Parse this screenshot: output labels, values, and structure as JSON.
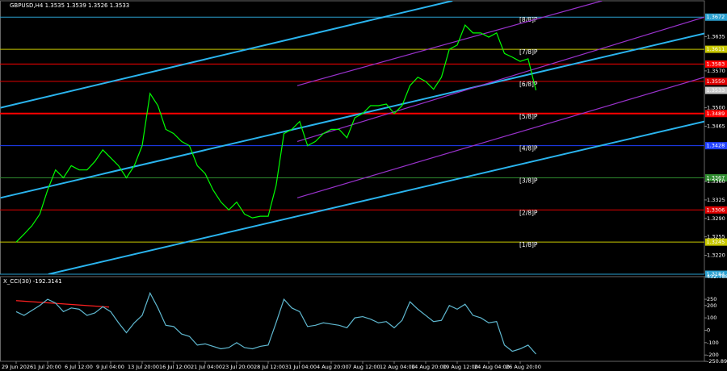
{
  "chart_data": [
    {
      "type": "line",
      "title": "GBPUSD,H4  1.3535 1.3539 1.3526 1.3533",
      "categories": [
        "29 Jun 2026",
        null,
        null,
        null,
        "1 Jul 20:00",
        null,
        null,
        null,
        "6 Jul 12:00",
        null,
        null,
        null,
        "9 Jul 04:00",
        null,
        null,
        null,
        "13 Jul 20:00",
        null,
        null,
        null,
        "16 Jul 12:00",
        null,
        null,
        null,
        "21 Jul 04:00",
        null,
        null,
        null,
        "23 Jul 20:00",
        null,
        null,
        null,
        "28 Jul 12:00",
        null,
        null,
        null,
        "31 Jul 04:00",
        null,
        null,
        null,
        "4 Aug 20:00",
        null,
        null,
        null,
        "7 Aug 12:00",
        null,
        null,
        null,
        "12 Aug 04:00",
        null,
        null,
        null,
        "14 Aug 20:00",
        null,
        null,
        null,
        "19 Aug 12:00",
        null,
        null,
        null,
        "24 Aug 04:00",
        null,
        null,
        null,
        "26 Aug 20:00",
        null,
        null
      ],
      "values": [
        1.3245,
        1.326,
        1.3276,
        1.3298,
        1.3344,
        1.3382,
        1.3367,
        1.339,
        1.3382,
        1.3382,
        1.3398,
        1.342,
        1.3405,
        1.339,
        1.3367,
        1.339,
        1.3428,
        1.3527,
        1.3504,
        1.3459,
        1.3451,
        1.3436,
        1.3428,
        1.339,
        1.3375,
        1.3344,
        1.3321,
        1.3306,
        1.3321,
        1.3298,
        1.3291,
        1.3294,
        1.3294,
        1.3352,
        1.3451,
        1.3459,
        1.3474,
        1.3428,
        1.3436,
        1.3451,
        1.3459,
        1.3459,
        1.3443,
        1.3481,
        1.3489,
        1.3504,
        1.3504,
        1.3507,
        1.3489,
        1.3504,
        1.3542,
        1.3558,
        1.355,
        1.3535,
        1.3558,
        1.3611,
        1.3619,
        1.3657,
        1.3642,
        1.3642,
        1.3634,
        1.3642,
        1.3603,
        1.3596,
        1.3588,
        1.3593,
        1.3533
      ],
      "color": "#00ff00",
      "ylim": [
        1.3184,
        1.3703
      ],
      "yticks": [
        1.3635,
        {
          "value": 1.357,
          "label": "1.3570"
        },
        {
          "value": 1.35,
          "label": "1.3500"
        },
        1.3465,
        {
          "value": 1.336,
          "label": "1.3360"
        },
        1.3325,
        {
          "value": 1.329,
          "label": "1.3290"
        },
        1.3255,
        {
          "value": 1.322,
          "label": "1.3220"
        }
      ],
      "last": 1.3533,
      "levels": [
        {
          "name": "[8/8]P",
          "value": 1.3672,
          "color": "#2aa0d0"
        },
        {
          "name": "[7/8]P",
          "value": 1.3611,
          "color": "#c8c800"
        },
        {
          "name": "[6/8]P",
          "value": 1.355,
          "value_label": "1.3550",
          "color": "#e00000"
        },
        {
          "name": "[5/8]P",
          "value": 1.3489,
          "color": "#ff0000"
        },
        {
          "name": "[4/8]P",
          "value": 1.3428,
          "color": "#2040ff"
        },
        {
          "name": "[3/8]P",
          "value": 1.3367,
          "color": "#2e8b2e"
        },
        {
          "name": "[2/8]P",
          "value": 1.3306,
          "color": "#e00000"
        },
        {
          "name": "[1/8]P",
          "value": 1.3245,
          "color": "#c8c800"
        },
        {
          "value": 1.3184,
          "color": "#2aa0d0"
        }
      ],
      "hlines": [
        {
          "value": 1.3583,
          "color": "#ff0000"
        }
      ],
      "trendlines": [
        {
          "color": "#2ab4ee",
          "x": [
            -2,
            55.4
          ],
          "y": [
            1.35,
            1.3703
          ]
        },
        {
          "color": "#2ab4ee",
          "x": [
            -2,
            87.4
          ],
          "y": [
            1.3329,
            1.3641
          ]
        },
        {
          "color": "#2ab4ee",
          "x": [
            4.1,
            87.4
          ],
          "y": [
            1.3184,
            1.3474
          ]
        },
        {
          "color": "#9932cc",
          "x": [
            35.7,
            74.4
          ],
          "y": [
            1.3542,
            1.3703
          ]
        },
        {
          "color": "#9932cc",
          "x": [
            35.7,
            87.4
          ],
          "y": [
            1.3436,
            1.3672
          ]
        },
        {
          "color": "#9932cc",
          "x": [
            35.7,
            87.4
          ],
          "y": [
            1.3329,
            1.3558
          ]
        }
      ]
    },
    {
      "type": "line",
      "title": "X_CCI(30) -192.3141",
      "values": [
        150,
        120,
        160,
        200,
        250,
        220,
        150,
        180,
        170,
        120,
        140,
        190,
        150,
        60,
        -20,
        60,
        120,
        300,
        180,
        40,
        30,
        -30,
        -50,
        -120,
        -110,
        -130,
        -150,
        -140,
        -100,
        -140,
        -150,
        -130,
        -120,
        60,
        250,
        180,
        150,
        30,
        40,
        60,
        50,
        40,
        20,
        100,
        110,
        90,
        60,
        70,
        20,
        80,
        230,
        170,
        120,
        70,
        80,
        200,
        170,
        210,
        120,
        100,
        60,
        70,
        -120,
        -170,
        -150,
        -120,
        -192.3141
      ],
      "color": "#5fb8d0",
      "ylim": [
        -250.897,
        432.788
      ],
      "yticks": [
        432.788,
        250,
        200,
        100,
        0,
        -100,
        -200,
        -250.897
      ],
      "trendlines": [
        {
          "color": "#ff2020",
          "x": [
            0,
            11.8
          ],
          "y": [
            239,
            187
          ]
        }
      ]
    }
  ]
}
